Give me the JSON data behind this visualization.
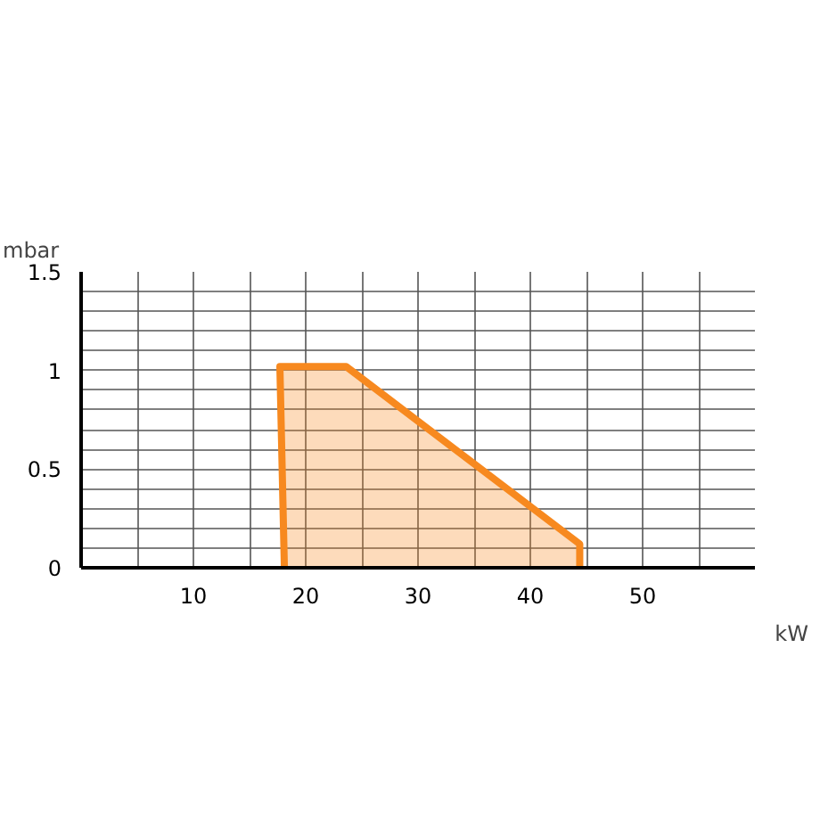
{
  "chart_data": {
    "type": "area",
    "xlabel": "kW",
    "ylabel": "mbar",
    "x": [
      18.1,
      17.7,
      23.6,
      44.4,
      44.4
    ],
    "series": [
      {
        "color": "#f7891f",
        "values": [
          0,
          1.02,
          1.02,
          0.12,
          0
        ]
      }
    ],
    "xlim": [
      0,
      60
    ],
    "ylim": [
      0,
      1.5
    ],
    "xticks": [
      {
        "value": 5,
        "label": null
      },
      10,
      {
        "value": 15,
        "label": null
      },
      20,
      {
        "value": 25,
        "label": null
      },
      30,
      {
        "value": 35,
        "label": null
      },
      40,
      {
        "value": 45,
        "label": null
      },
      50,
      {
        "value": 55,
        "label": null
      }
    ],
    "yticks": [
      0,
      {
        "value": 0.1,
        "label": null
      },
      {
        "value": 0.2,
        "label": null
      },
      {
        "value": 0.3,
        "label": null
      },
      {
        "value": 0.4,
        "label": null
      },
      0.5,
      {
        "value": 0.6,
        "label": null
      },
      {
        "value": 0.7,
        "label": null
      },
      {
        "value": 0.8,
        "label": null
      },
      {
        "value": 0.9,
        "label": null
      },
      1,
      {
        "value": 1.1,
        "label": null
      },
      {
        "value": 1.2,
        "label": null
      },
      {
        "value": 1.3,
        "label": null
      },
      {
        "value": 1.4,
        "label": null
      },
      1.5
    ],
    "grid": true
  }
}
